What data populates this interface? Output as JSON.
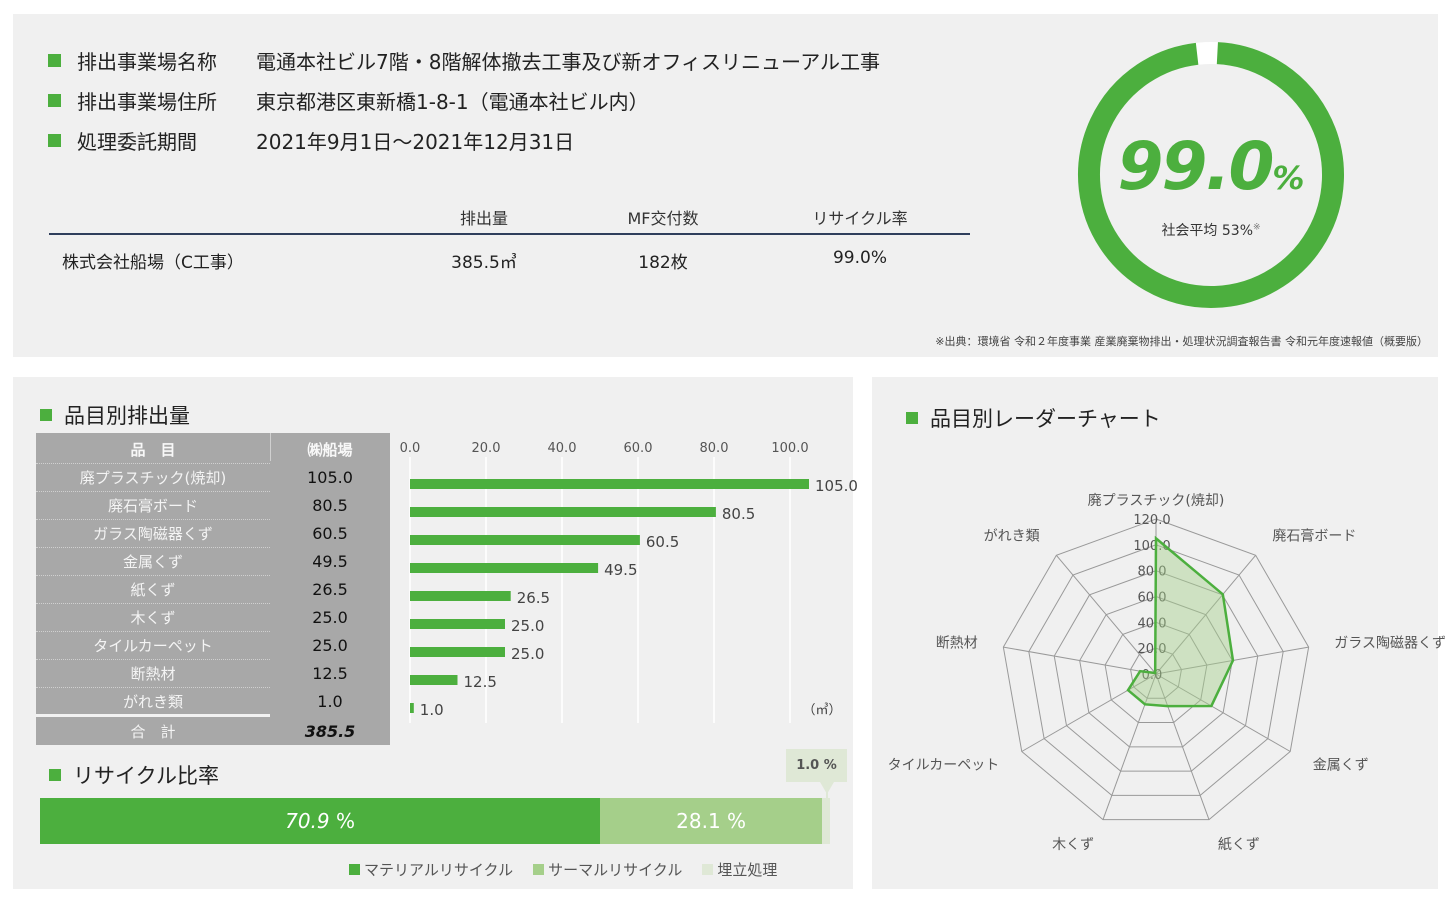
{
  "site": {
    "rows": [
      {
        "label": "排出事業場名称",
        "value": "電通本社ビル7階・8階解体撤去工事及び新オフィスリニューアル工事"
      },
      {
        "label": "排出事業場住所",
        "value": "東京都港区東新橋1-8-1（電通本社ビル内）"
      },
      {
        "label": "処理委託期間",
        "value": "2021年9月1日〜2021年12月31日"
      }
    ]
  },
  "summary": {
    "headers": [
      "排出量",
      "MF交付数",
      "リサイクル率"
    ],
    "company": "株式会社船場（C工事）",
    "values": [
      "385.5㎥",
      "182枚",
      "99.0%"
    ]
  },
  "rate": {
    "value_num": "99.0",
    "value_unit": "%",
    "fraction": 0.99,
    "average_label": "社会平均 53%",
    "average_mark": "※",
    "source": "※出典：環境省 令和２年度事業 産業廃棄物排出・処理状況調査報告書 令和元年度速報値（概要版）"
  },
  "colors": {
    "accent": "#4caf3e",
    "thermal": "#a5cf8a",
    "landfill": "#dfe8d6",
    "table_bg": "#a8a8a8",
    "panel": "#f0f0f0"
  },
  "items_section": {
    "title": "品目別排出量",
    "table_header_name": "品　目",
    "table_header_value": "㈱船場",
    "total_label": "合　計",
    "total_value": "385.5",
    "unit": "（㎥）"
  },
  "ratio_section": {
    "title": "リサイクル比率",
    "material_value": "70.9",
    "thermal_value": "28.1 %",
    "landfill_value": "1.0 %",
    "percent": "%",
    "legend": [
      "マテリアルリサイクル",
      "サーマルリサイクル",
      "埋立処理"
    ]
  },
  "radar_section": {
    "title": "品目別レーダーチャート"
  },
  "chart_data": [
    {
      "type": "bar",
      "orientation": "horizontal",
      "categories": [
        "廃プラスチック(焼却)",
        "廃石膏ボード",
        "ガラス陶磁器くず",
        "金属くず",
        "紙くず",
        "木くず",
        "タイルカーペット",
        "断熱材",
        "がれき類"
      ],
      "values": [
        105.0,
        80.5,
        60.5,
        49.5,
        26.5,
        25.0,
        25.0,
        12.5,
        1.0
      ],
      "value_labels": [
        "105.0",
        "80.5",
        "60.5",
        "49.5",
        "26.5",
        "25.0",
        "25.0",
        "12.5",
        "1.0"
      ],
      "xlim": [
        0,
        100
      ],
      "x_ticks": [
        "0.0",
        "20.0",
        "40.0",
        "60.0",
        "80.0",
        "100.0"
      ],
      "grid": true
    },
    {
      "type": "bar",
      "stacked": true,
      "categories": [
        "マテリアルリサイクル",
        "サーマルリサイクル",
        "埋立処理"
      ],
      "values": [
        70.9,
        28.1,
        1.0
      ]
    },
    {
      "type": "radar",
      "categories": [
        "廃プラスチック(焼却)",
        "廃石膏ボード",
        "ガラス陶磁器くず",
        "金属くず",
        "紙くず",
        "木くず",
        "タイルカーペット",
        "断熱材",
        "がれき類"
      ],
      "values": [
        105.0,
        80.5,
        60.5,
        49.5,
        26.5,
        25.0,
        25.0,
        12.5,
        1.0
      ],
      "rlim": [
        0,
        120
      ],
      "r_ticks": [
        "0.0",
        "20.0",
        "40.0",
        "60.0",
        "80.0",
        "100.0",
        "120.0"
      ]
    }
  ]
}
